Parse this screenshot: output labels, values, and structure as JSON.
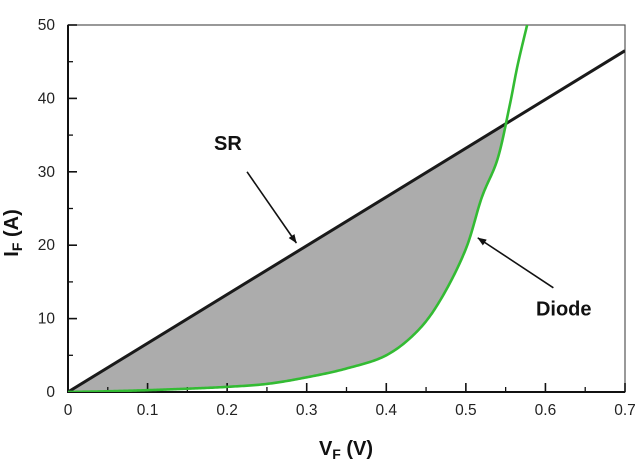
{
  "chart_data": {
    "type": "line",
    "title": "",
    "description": "Forward current vs forward voltage comparison of a Schottky rectifier (SR, straight black line) and a PN diode (green exponential curve); the area between the curves is shaded gray up to their intersection.",
    "xlabel": {
      "main": "V",
      "sub": "F",
      "rest": " (V)"
    },
    "ylabel": {
      "main": "I",
      "sub": "F",
      "rest": " (A)"
    },
    "xlim": [
      0,
      0.7
    ],
    "ylim": [
      0,
      50
    ],
    "x_major_ticks": [
      0,
      0.1,
      0.2,
      0.3,
      0.4,
      0.5,
      0.6,
      0.7
    ],
    "x_tick_labels": [
      "0",
      "0.1",
      "0.2",
      "0.3",
      "0.4",
      "0.5",
      "0.6",
      "0.7"
    ],
    "x_minor_step": 0.05,
    "y_major_ticks": [
      0,
      10,
      20,
      30,
      40,
      50
    ],
    "y_tick_labels": [
      "0",
      "10",
      "20",
      "30",
      "40",
      "50"
    ],
    "y_minor_step": 5,
    "grid": false,
    "legend": "none (labels via arrow annotations)",
    "series": [
      {
        "name": "SR",
        "type": "line",
        "color": "#1a1a1a",
        "stroke_width": 3,
        "smooth": false,
        "points": [
          [
            0,
            0
          ],
          [
            0.7,
            46.5
          ]
        ]
      },
      {
        "name": "Diode",
        "type": "line",
        "color": "#33bb33",
        "stroke_width": 2.6,
        "smooth": true,
        "points": [
          [
            0,
            0
          ],
          [
            0.05,
            0.1
          ],
          [
            0.1,
            0.25
          ],
          [
            0.15,
            0.45
          ],
          [
            0.2,
            0.7
          ],
          [
            0.25,
            1.1
          ],
          [
            0.3,
            2.0
          ],
          [
            0.35,
            3.2
          ],
          [
            0.4,
            5.0
          ],
          [
            0.44,
            8.4
          ],
          [
            0.47,
            12.9
          ],
          [
            0.5,
            19.5
          ],
          [
            0.52,
            26.5
          ],
          [
            0.54,
            31.8
          ],
          [
            0.555,
            39.0
          ],
          [
            0.565,
            44.5
          ],
          [
            0.577,
            50.0
          ]
        ]
      }
    ],
    "shaded_region": {
      "between": [
        "SR",
        "Diode"
      ],
      "color": "#acacac",
      "intersection": [
        0.55,
        36.5
      ]
    },
    "annotations": [
      {
        "text": "SR",
        "text_pos": [
          0.201,
          33.9
        ],
        "arrow_from": [
          0.225,
          30.0
        ],
        "arrow_to": [
          0.287,
          20.3
        ]
      },
      {
        "text": "Diode",
        "text_pos": [
          0.623,
          11.4
        ],
        "arrow_from": [
          0.61,
          14.2
        ],
        "arrow_to": [
          0.515,
          21.0
        ]
      }
    ],
    "axis_colors": {
      "axis": "#111111",
      "frame": "#555555",
      "tick_label": "#222222"
    }
  }
}
